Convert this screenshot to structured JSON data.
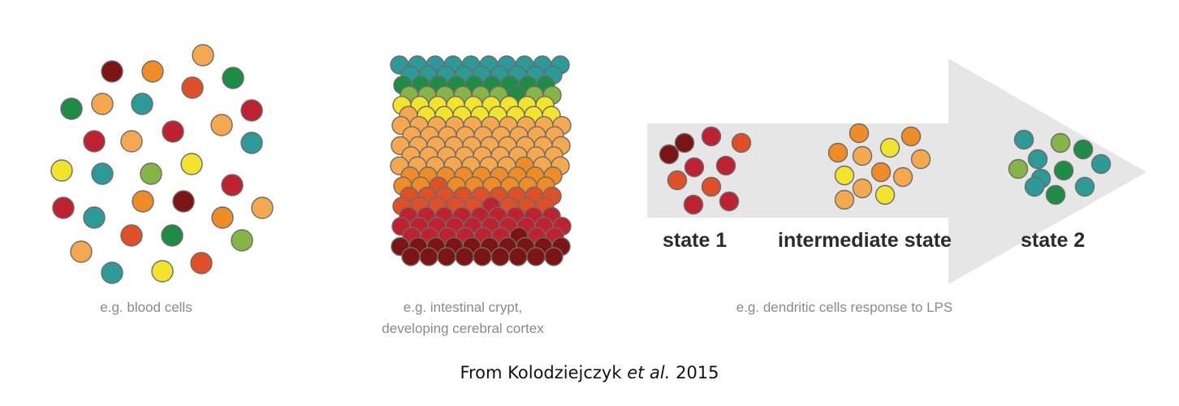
{
  "colors": {
    "dark_red": "#7c1414",
    "red": "#be2230",
    "red_orange": "#e05028",
    "orange": "#ee8c28",
    "light_orange": "#f4a850",
    "yellow": "#f2e42c",
    "light_green": "#86b446",
    "green": "#1e8c44",
    "teal": "#2e9a98",
    "arrow": "#e6e6e6"
  },
  "panels": {
    "random": {
      "caption": "e.g. blood cells"
    },
    "gradient": {
      "caption_line1": "e.g. intestinal crypt,",
      "caption_line2": "developing cerebral cortex"
    },
    "trajectory": {
      "caption": "e.g. dendritic cells response to LPS",
      "state1": "state 1",
      "intermediate": "intermediate state",
      "state2": "state 2"
    }
  },
  "citation": {
    "prefix": "From Kolodziejczyk ",
    "etal": "et al.",
    "year": " 2015"
  }
}
